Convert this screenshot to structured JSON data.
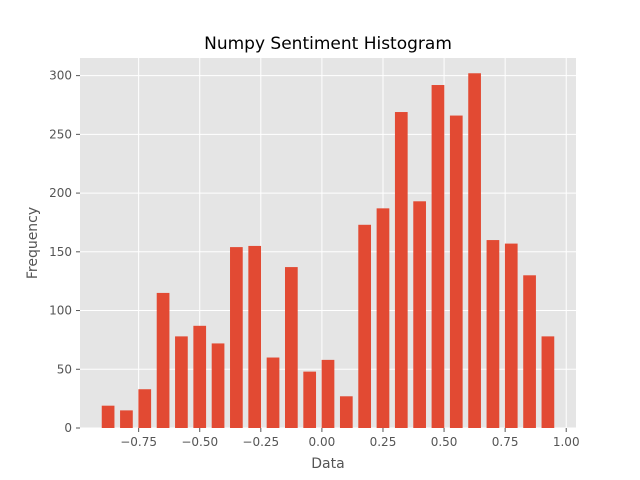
{
  "chart_data": {
    "type": "bar",
    "title": "Numpy Sentiment Histogram",
    "xlabel": "Data",
    "ylabel": "Frequency",
    "xlim": [
      -0.99,
      1.04
    ],
    "ylim": [
      0,
      315
    ],
    "x_ticks": [
      -0.75,
      -0.5,
      -0.25,
      0.0,
      0.25,
      0.5,
      0.75,
      1.0
    ],
    "x_tick_labels": [
      "−0.75",
      "−0.50",
      "−0.25",
      "0.00",
      "0.25",
      "0.50",
      "0.75",
      "1.00"
    ],
    "y_ticks": [
      0,
      50,
      100,
      150,
      200,
      250,
      300
    ],
    "y_tick_labels": [
      "0",
      "50",
      "100",
      "150",
      "200",
      "250",
      "300"
    ],
    "grid": true,
    "bar_width": 0.052,
    "x": [
      -0.875,
      -0.8,
      -0.725,
      -0.65,
      -0.575,
      -0.5,
      -0.425,
      -0.35,
      -0.275,
      -0.2,
      -0.125,
      -0.05,
      0.025,
      0.1,
      0.175,
      0.25,
      0.325,
      0.4,
      0.475,
      0.55,
      0.625,
      0.7,
      0.775,
      0.85,
      0.925
    ],
    "values": [
      19,
      15,
      33,
      115,
      78,
      87,
      72,
      154,
      155,
      60,
      137,
      48,
      58,
      27,
      173,
      187,
      269,
      193,
      292,
      266,
      302,
      160,
      157,
      130,
      78
    ],
    "colors": {
      "bar": "#E24A33",
      "plot_background": "#E5E5E5",
      "grid": "#FFFFFF",
      "tick_text": "#555555",
      "title_text": "#000000"
    }
  }
}
